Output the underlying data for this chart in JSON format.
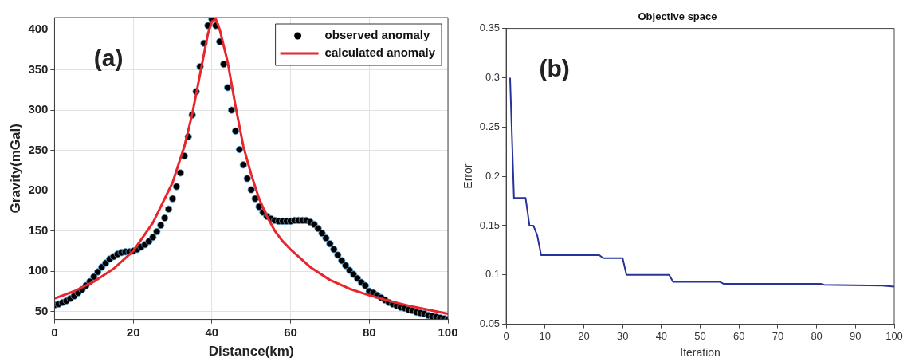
{
  "chart_data": [
    {
      "type": "line",
      "xlabel": "Distance(km)",
      "ylabel": "Gravity(mGal)",
      "xlim": [
        0,
        100
      ],
      "ylim": [
        40,
        415
      ],
      "xticks": [
        0,
        20,
        40,
        60,
        80,
        100
      ],
      "yticks": [
        50,
        100,
        150,
        200,
        250,
        300,
        350,
        400
      ],
      "grid": true,
      "legend": "top right",
      "annotations": [
        "(a)"
      ],
      "series": [
        {
          "name": "observed anomaly",
          "type": "scatter",
          "marker": "circle",
          "color": "#000000",
          "x": [
            0,
            1,
            2,
            3,
            4,
            5,
            6,
            7,
            8,
            9,
            10,
            11,
            12,
            13,
            14,
            15,
            16,
            17,
            18,
            19,
            20,
            21,
            22,
            23,
            24,
            25,
            26,
            27,
            28,
            29,
            30,
            31,
            32,
            33,
            34,
            35,
            36,
            37,
            38,
            39,
            40,
            41,
            42,
            43,
            44,
            45,
            46,
            47,
            48,
            49,
            50,
            51,
            52,
            53,
            54,
            55,
            56,
            57,
            58,
            59,
            60,
            61,
            62,
            63,
            64,
            65,
            66,
            67,
            68,
            69,
            70,
            71,
            72,
            73,
            74,
            75,
            76,
            77,
            78,
            79,
            80,
            81,
            82,
            83,
            84,
            85,
            86,
            87,
            88,
            89,
            90,
            91,
            92,
            93,
            94,
            95,
            96,
            97,
            98,
            99,
            100
          ],
          "values": [
            58,
            59,
            61,
            63,
            66,
            69,
            73,
            77,
            82,
            87,
            93,
            99,
            105,
            110,
            115,
            118,
            121,
            123,
            124,
            124,
            125,
            127,
            130,
            133,
            137,
            142,
            149,
            157,
            166,
            177,
            190,
            205,
            222,
            243,
            267,
            294,
            323,
            354,
            383,
            405,
            413,
            405,
            385,
            357,
            328,
            300,
            274,
            251,
            232,
            215,
            201,
            190,
            180,
            173,
            168,
            165,
            163,
            162,
            162,
            162,
            162,
            163,
            163,
            163,
            163,
            161,
            158,
            153,
            147,
            141,
            134,
            127,
            120,
            113,
            107,
            101,
            96,
            91,
            86,
            82,
            75,
            73,
            70,
            67,
            64,
            61,
            59,
            57,
            55,
            54,
            52,
            51,
            49,
            48,
            47,
            45,
            44,
            43,
            42,
            41,
            40
          ]
        },
        {
          "name": "calculated anomaly",
          "marker": "none",
          "color": "#e8262b",
          "x": [
            0,
            5,
            10,
            15,
            20,
            25,
            30,
            33,
            35,
            37,
            39,
            40,
            41,
            42,
            44,
            46,
            48,
            50,
            52,
            54,
            56,
            58,
            60,
            65,
            70,
            75,
            80,
            85,
            90,
            95,
            100
          ],
          "values": [
            66,
            75,
            87,
            103,
            125,
            160,
            210,
            255,
            295,
            345,
            395,
            410,
            413,
            400,
            360,
            305,
            255,
            220,
            190,
            168,
            150,
            137,
            127,
            105,
            89,
            78,
            70,
            63,
            57,
            52,
            47
          ]
        }
      ]
    },
    {
      "type": "line",
      "title": "Objective space",
      "xlabel": "Iteration",
      "ylabel": "Error",
      "xlim": [
        0,
        100
      ],
      "ylim": [
        0.05,
        0.35
      ],
      "xticks": [
        0,
        10,
        20,
        30,
        40,
        50,
        60,
        70,
        80,
        90,
        100
      ],
      "yticks": [
        0.05,
        0.1,
        0.15,
        0.2,
        0.25,
        0.3,
        0.35
      ],
      "grid": false,
      "annotations": [
        "(b)"
      ],
      "series": [
        {
          "marker": "none",
          "color": "#27339a",
          "x": [
            1,
            2,
            5,
            6,
            7,
            8,
            9,
            24,
            25,
            30,
            31,
            42,
            43,
            55,
            56,
            81,
            82,
            97,
            100
          ],
          "values": [
            0.3,
            0.178,
            0.178,
            0.15,
            0.15,
            0.14,
            0.12,
            0.12,
            0.117,
            0.117,
            0.1,
            0.1,
            0.093,
            0.093,
            0.091,
            0.091,
            0.09,
            0.089,
            0.088
          ]
        }
      ]
    }
  ]
}
